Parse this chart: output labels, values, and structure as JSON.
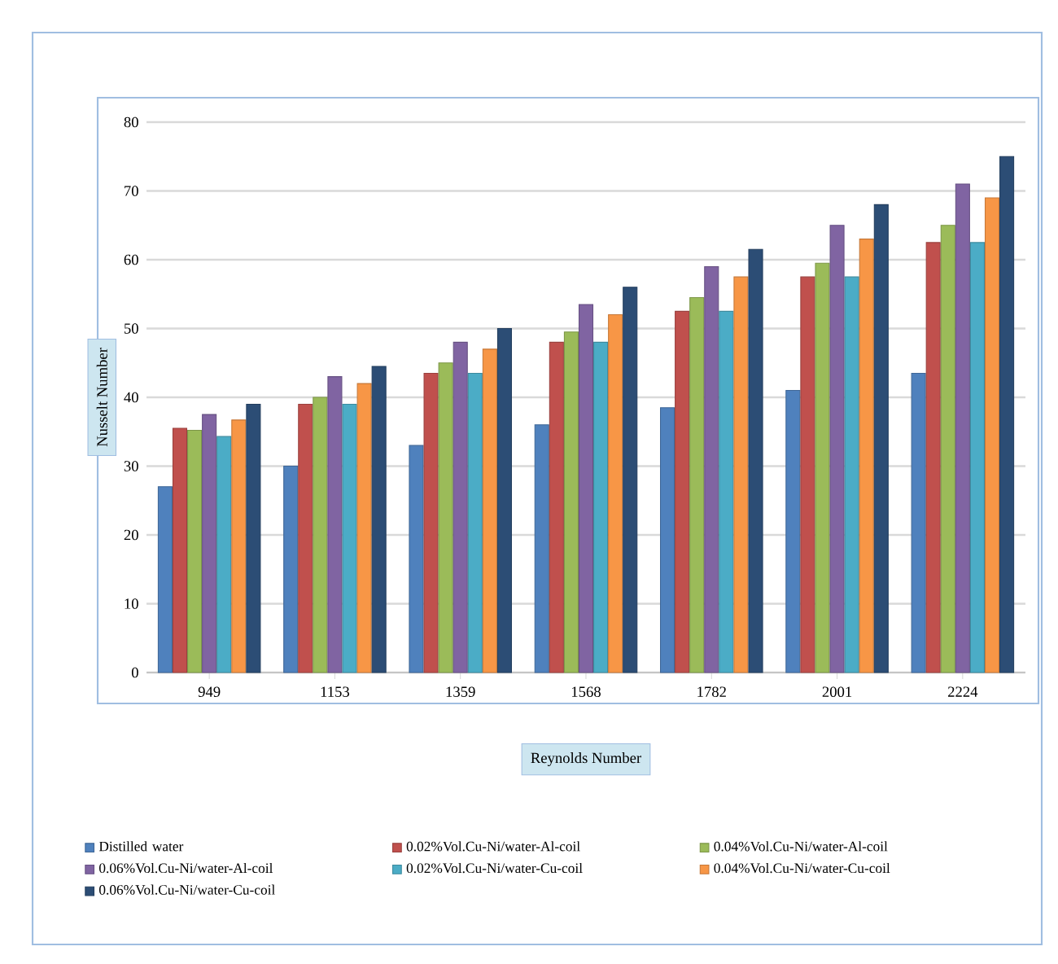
{
  "chart_data": {
    "type": "bar",
    "xlabel": "Reynolds Number",
    "ylabel": "Nusselt Number",
    "categories": [
      "949",
      "1153",
      "1359",
      "1568",
      "1782",
      "2001",
      "2224"
    ],
    "series": [
      {
        "name": "Distilled water",
        "color": "#4f81bd",
        "values": [
          27,
          30,
          33,
          36,
          38.5,
          41,
          43.5
        ]
      },
      {
        "name": "0.02%Vol.Cu-Ni/water-Al-coil",
        "color": "#c0504d",
        "values": [
          35.5,
          39,
          43.5,
          48,
          52.5,
          57.5,
          62.5
        ]
      },
      {
        "name": "0.04%Vol.Cu-Ni/water-Al-coil",
        "color": "#9bbb59",
        "values": [
          35.2,
          40,
          45,
          49.5,
          54.5,
          59.5,
          65
        ]
      },
      {
        "name": "0.06%Vol.Cu-Ni/water-Al-coil",
        "color": "#8064a2",
        "values": [
          37.5,
          43,
          48,
          53.5,
          59,
          65,
          71
        ]
      },
      {
        "name": "0.02%Vol.Cu-Ni/water-Cu-coil",
        "color": "#4bacc6",
        "values": [
          34.3,
          39,
          43.5,
          48,
          52.5,
          57.5,
          62.5
        ]
      },
      {
        "name": "0.04%Vol.Cu-Ni/water-Cu-coil",
        "color": "#f79646",
        "values": [
          36.7,
          42,
          47,
          52,
          57.5,
          63,
          69
        ]
      },
      {
        "name": "0.06%Vol.Cu-Ni/water-Cu-coil",
        "color": "#2c4d75",
        "values": [
          39,
          44.5,
          50,
          56,
          61.5,
          68,
          75
        ]
      }
    ],
    "ylim": [
      0,
      80
    ],
    "yticks": [
      0,
      10,
      20,
      30,
      40,
      50,
      60,
      70,
      80
    ],
    "grid": "y",
    "legend": "bottom"
  }
}
